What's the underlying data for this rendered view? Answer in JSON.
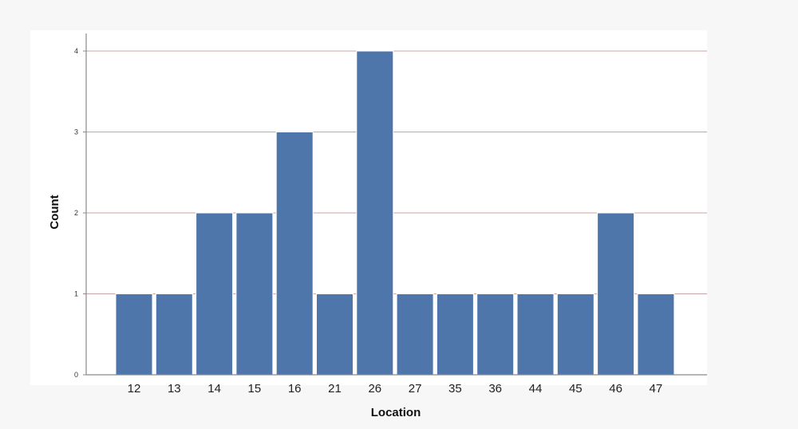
{
  "chart_data": {
    "type": "bar",
    "categories": [
      "12",
      "13",
      "14",
      "15",
      "16",
      "21",
      "26",
      "27",
      "35",
      "36",
      "44",
      "45",
      "46",
      "47"
    ],
    "values": [
      1,
      1,
      2,
      2,
      3,
      1,
      4,
      1,
      1,
      1,
      1,
      1,
      2,
      1
    ],
    "title": "",
    "xlabel": "Location",
    "ylabel": "Count",
    "ylim": [
      0,
      4
    ],
    "yticks": [
      0,
      1,
      2,
      3,
      4
    ],
    "grid": true,
    "colors": {
      "bar": "#4f76ab",
      "grid": "#c9a4a4",
      "axis": "#8a8a8a"
    }
  }
}
